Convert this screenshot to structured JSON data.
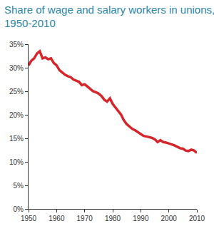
{
  "chart_data": {
    "type": "line",
    "title": "Share of wage and salary workers in unions, 1950-2010",
    "x": [
      1950,
      1951,
      1952,
      1953,
      1954,
      1955,
      1956,
      1957,
      1958,
      1959,
      1960,
      1961,
      1962,
      1963,
      1964,
      1965,
      1966,
      1967,
      1968,
      1969,
      1970,
      1971,
      1972,
      1973,
      1974,
      1975,
      1976,
      1977,
      1978,
      1979,
      1980,
      1981,
      1982,
      1983,
      1984,
      1985,
      1986,
      1987,
      1988,
      1989,
      1990,
      1991,
      1992,
      1993,
      1994,
      1995,
      1996,
      1997,
      1998,
      1999,
      2000,
      2001,
      2002,
      2003,
      2004,
      2005,
      2006,
      2007,
      2008,
      2009,
      2010
    ],
    "values": [
      30.5,
      31.5,
      32,
      33,
      33.5,
      32,
      32.2,
      31.8,
      32,
      31,
      30.5,
      29.5,
      29,
      28.5,
      28.2,
      28,
      27.5,
      27.2,
      27,
      26.3,
      26.5,
      26,
      25.5,
      25,
      24.8,
      24.5,
      24,
      23.2,
      22.8,
      23.5,
      22.3,
      21.5,
      20.8,
      20,
      18.8,
      18,
      17.5,
      17,
      16.7,
      16.3,
      15.9,
      15.5,
      15.4,
      15.3,
      15.1,
      14.8,
      14.2,
      14.6,
      14.2,
      14.1,
      13.9,
      13.8,
      13.5,
      13.2,
      12.9,
      12.8,
      12.4,
      12.3,
      12.6,
      12.4,
      11.9
    ],
    "color": "#d7262b",
    "xlim": [
      1950,
      2010
    ],
    "xticks": [
      1950,
      1960,
      1970,
      1980,
      1990,
      2000,
      2010
    ],
    "ylim": [
      0,
      35
    ],
    "yticks": [
      {
        "value": 0,
        "label": "0%"
      },
      {
        "value": 5,
        "label": "5%"
      },
      {
        "value": 10,
        "label": "10%"
      },
      {
        "value": 15,
        "label": "15%"
      },
      {
        "value": 20,
        "label": "20%"
      },
      {
        "value": 25,
        "label": "25%"
      },
      {
        "value": 30,
        "label": "30%"
      },
      {
        "value": 35,
        "label": "35%"
      }
    ],
    "grid": false
  }
}
